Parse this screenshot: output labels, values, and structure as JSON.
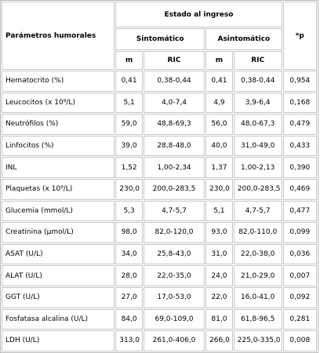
{
  "table": {
    "header": {
      "param": "Parámetros humorales",
      "group": "Estado al ingreso",
      "sint": "Sintomático",
      "asint": "Asintomático",
      "p": "*p",
      "sub": [
        "m",
        "RIC",
        "m",
        "RIC"
      ]
    },
    "rows": [
      [
        "Hematocrito (%)",
        "0,41",
        "0,38-0,44",
        "0,41",
        "0,38-0,44",
        "0,954"
      ],
      [
        "Leucocitos (x 10⁹/L)",
        "5,1",
        "4,0-7,4",
        "4,9",
        "3,9-6,4",
        "0,168"
      ],
      [
        "Neutrófilos (%)",
        "59,0",
        "48,8-69,3",
        "56,0",
        "48,0-67,3",
        "0,479"
      ],
      [
        "Linfocitos (%)",
        "39,0",
        "28,8-48,0",
        "40,0",
        "31,0-49,0",
        "0,433"
      ],
      [
        "INL",
        "1,52",
        "1,00-2,34",
        "1,37",
        "1,00-2,13",
        "0,390"
      ],
      [
        "Plaquetas (x 10⁹/L)",
        "230,0",
        "200,0-283,5",
        "230,0",
        "200,0-283,5",
        "0,469"
      ],
      [
        "Glucemia (mmol/L)",
        "5,3",
        "4,7-5,7",
        "5,1",
        "4,7-5,7",
        "0,477"
      ],
      [
        "Creatinina (µmol/L)",
        "98,0",
        "82,0-120,0",
        "93,0",
        "82,0-110,0",
        "0,099"
      ],
      [
        "ASAT (U/L)",
        "34,0",
        "25,8-43,0",
        "31,0",
        "22,0-38,0",
        "0,036"
      ],
      [
        "ALAT (U/L)",
        "28,0",
        "22,0-35,0",
        "24,0",
        "21,0-29,0",
        "0,007"
      ],
      [
        "GGT (U/L)",
        "27,0",
        "17,0-53,0",
        "22,0",
        "16,0-41,0",
        "0,092"
      ],
      [
        "Fosfatasa alcalina (U/L)",
        "84,0",
        "69,0-109,0",
        "81,0",
        "61,8-96,5",
        "0,281"
      ],
      [
        "LDH (U/L)",
        "313,0",
        "261,0-406,0",
        "266,0",
        "225,0-335,0",
        "0,008"
      ]
    ]
  }
}
